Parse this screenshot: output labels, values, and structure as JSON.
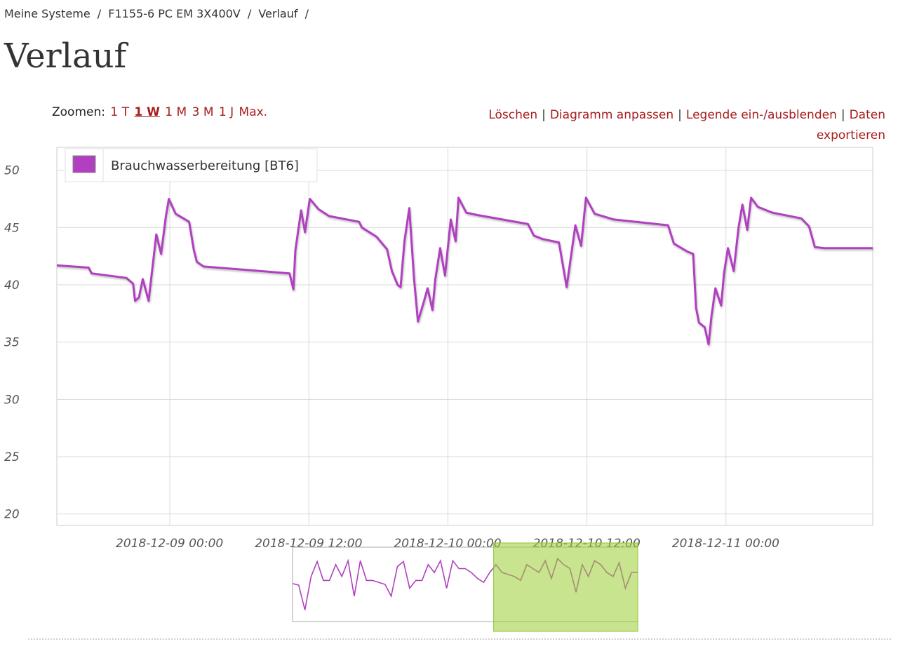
{
  "breadcrumb": {
    "items": [
      "Meine Systeme",
      "F1155-6 PC EM 3X400V",
      "Verlauf"
    ],
    "separator": "/"
  },
  "page_title": "Verlauf",
  "zoom": {
    "label": "Zoomen:",
    "options": [
      "1 T",
      "1 W",
      "1 M",
      "3 M",
      "1 J",
      "Max."
    ],
    "active": "1 W"
  },
  "actions": {
    "delete": "Löschen",
    "customize": "Diagramm anpassen",
    "legend_toggle": "Legende ein-/ausblenden",
    "export_1": "Daten",
    "export_2": "exportieren",
    "separator": "|"
  },
  "colors": {
    "series": "#b040c0",
    "link": "#a81c1c",
    "grid": "#d9d9d9",
    "navigator_highlight": "#9acd32"
  },
  "chart_data": {
    "type": "line",
    "title": "",
    "xlabel": "",
    "ylabel": "",
    "ylim": [
      19,
      52
    ],
    "xlim": [
      "2018-12-08 14:15",
      "2018-12-11 12:40"
    ],
    "y_ticks": [
      20,
      25,
      30,
      35,
      40,
      45,
      50
    ],
    "x_ticks": [
      "2018-12-09 00:00",
      "2018-12-09 12:00",
      "2018-12-10 00:00",
      "2018-12-10 12:00",
      "2018-12-11 00:00"
    ],
    "grid": true,
    "legend": "top-left",
    "series": [
      {
        "name": "Brauchwasserbereitung [BT6]",
        "color": "#b040c0",
        "points": [
          [
            "2018-12-08 14:15",
            41.7
          ],
          [
            "2018-12-08 17:00",
            41.5
          ],
          [
            "2018-12-08 17:15",
            41.0
          ],
          [
            "2018-12-08 20:15",
            40.6
          ],
          [
            "2018-12-08 20:50",
            40.1
          ],
          [
            "2018-12-08 21:00",
            38.6
          ],
          [
            "2018-12-08 21:20",
            38.9
          ],
          [
            "2018-12-08 21:40",
            40.5
          ],
          [
            "2018-12-08 22:10",
            38.6
          ],
          [
            "2018-12-08 22:30",
            41.5
          ],
          [
            "2018-12-08 22:50",
            44.4
          ],
          [
            "2018-12-08 23:15",
            42.7
          ],
          [
            "2018-12-08 23:40",
            46.0
          ],
          [
            "2018-12-08 23:55",
            47.5
          ],
          [
            "2018-12-09 00:30",
            46.2
          ],
          [
            "2018-12-09 01:40",
            45.5
          ],
          [
            "2018-12-09 02:05",
            43.0
          ],
          [
            "2018-12-09 02:20",
            42.0
          ],
          [
            "2018-12-09 02:55",
            41.6
          ],
          [
            "2018-12-09 10:20",
            41.0
          ],
          [
            "2018-12-09 10:40",
            39.6
          ],
          [
            "2018-12-09 10:50",
            43.0
          ],
          [
            "2018-12-09 11:20",
            46.5
          ],
          [
            "2018-12-09 11:40",
            44.6
          ],
          [
            "2018-12-09 12:05",
            47.5
          ],
          [
            "2018-12-09 12:50",
            46.6
          ],
          [
            "2018-12-09 13:45",
            46.0
          ],
          [
            "2018-12-09 16:20",
            45.5
          ],
          [
            "2018-12-09 16:35",
            45.0
          ],
          [
            "2018-12-09 17:50",
            44.2
          ],
          [
            "2018-12-09 18:45",
            43.1
          ],
          [
            "2018-12-09 19:10",
            41.2
          ],
          [
            "2018-12-09 19:40",
            40.0
          ],
          [
            "2018-12-09 19:55",
            39.8
          ],
          [
            "2018-12-09 20:15",
            43.8
          ],
          [
            "2018-12-09 20:40",
            46.7
          ],
          [
            "2018-12-09 21:05",
            40.5
          ],
          [
            "2018-12-09 21:25",
            36.8
          ],
          [
            "2018-12-09 21:55",
            38.5
          ],
          [
            "2018-12-09 22:15",
            39.7
          ],
          [
            "2018-12-09 22:40",
            37.8
          ],
          [
            "2018-12-09 22:55",
            40.5
          ],
          [
            "2018-12-09 23:20",
            43.2
          ],
          [
            "2018-12-09 23:45",
            40.8
          ],
          [
            "2018-12-10 00:15",
            45.7
          ],
          [
            "2018-12-10 00:40",
            43.8
          ],
          [
            "2018-12-10 00:55",
            47.6
          ],
          [
            "2018-12-10 01:35",
            46.3
          ],
          [
            "2018-12-10 02:30",
            46.1
          ],
          [
            "2018-12-10 06:55",
            45.3
          ],
          [
            "2018-12-10 07:25",
            44.3
          ],
          [
            "2018-12-10 08:10",
            44.0
          ],
          [
            "2018-12-10 09:35",
            43.7
          ],
          [
            "2018-12-10 10:15",
            39.8
          ],
          [
            "2018-12-10 11:00",
            45.2
          ],
          [
            "2018-12-10 11:30",
            43.4
          ],
          [
            "2018-12-10 11:55",
            47.6
          ],
          [
            "2018-12-10 12:40",
            46.2
          ],
          [
            "2018-12-10 14:20",
            45.7
          ],
          [
            "2018-12-10 19:00",
            45.2
          ],
          [
            "2018-12-10 19:30",
            43.6
          ],
          [
            "2018-12-10 20:40",
            42.9
          ],
          [
            "2018-12-10 21:10",
            42.7
          ],
          [
            "2018-12-10 21:25",
            38.0
          ],
          [
            "2018-12-10 21:40",
            36.7
          ],
          [
            "2018-12-10 22:10",
            36.3
          ],
          [
            "2018-12-10 22:30",
            34.8
          ],
          [
            "2018-12-10 22:45",
            37.3
          ],
          [
            "2018-12-10 23:05",
            39.7
          ],
          [
            "2018-12-10 23:35",
            38.2
          ],
          [
            "2018-12-10 23:50",
            41.0
          ],
          [
            "2018-12-11 00:10",
            43.2
          ],
          [
            "2018-12-11 00:40",
            41.2
          ],
          [
            "2018-12-11 01:05",
            45.0
          ],
          [
            "2018-12-11 01:25",
            47.0
          ],
          [
            "2018-12-11 01:50",
            44.8
          ],
          [
            "2018-12-11 02:10",
            47.6
          ],
          [
            "2018-12-11 02:45",
            46.8
          ],
          [
            "2018-12-11 04:00",
            46.3
          ],
          [
            "2018-12-11 06:30",
            45.8
          ],
          [
            "2018-12-11 07:10",
            45.1
          ],
          [
            "2018-12-11 07:40",
            43.3
          ],
          [
            "2018-12-11 08:30",
            43.2
          ],
          [
            "2018-12-11 12:40",
            43.2
          ]
        ]
      }
    ],
    "navigator": {
      "range": [
        "2018-12-04 12:00",
        "2018-12-11 12:40"
      ],
      "selected": [
        "2018-12-08 14:15",
        "2018-12-11 12:40"
      ],
      "values": [
        41.2,
        40.8,
        34.5,
        43.0,
        46.8,
        42.0,
        42.0,
        46.0,
        43.0,
        47.0,
        38.0,
        47.0,
        42.0,
        42.0,
        41.5,
        41.0,
        38.0,
        45.5,
        46.8,
        40.0,
        42.0,
        42.0,
        46.0,
        44.0,
        47.0,
        40.0,
        47.0,
        45.0,
        45.0,
        44.0,
        42.5,
        41.5,
        44.0,
        46.0,
        44.0,
        43.5,
        43.0,
        42.0,
        46.0,
        45.0,
        44.0,
        47.0,
        42.5,
        47.5,
        46.0,
        45.0,
        39.0,
        46.0,
        43.0,
        47.0,
        46.0,
        44.0,
        43.0,
        46.5,
        40.0,
        44.0,
        44.0
      ]
    }
  }
}
